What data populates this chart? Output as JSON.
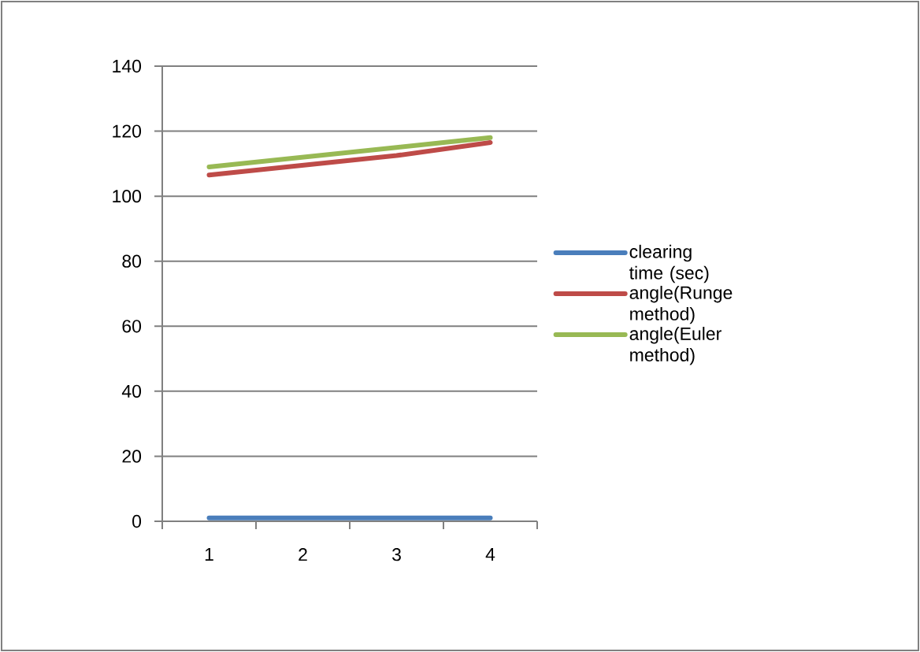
{
  "chart_data": {
    "type": "line",
    "categories": [
      "1",
      "2",
      "3",
      "4"
    ],
    "series": [
      {
        "name": "clearing time (sec)",
        "color": "#4a7ebb",
        "values": [
          1,
          1,
          1,
          1
        ]
      },
      {
        "name": "angle(Runge method)",
        "color": "#be4b48",
        "values": [
          106.5,
          109.5,
          112.5,
          116.5
        ]
      },
      {
        "name": "angle(Euler method)",
        "color": "#98b954",
        "values": [
          109,
          112,
          115,
          118
        ]
      }
    ],
    "ylim": [
      0,
      140
    ],
    "yticks": [
      0,
      20,
      40,
      60,
      80,
      100,
      120,
      140
    ],
    "grid": "y",
    "legend": "right",
    "marker": "none",
    "line_style": "solid"
  }
}
